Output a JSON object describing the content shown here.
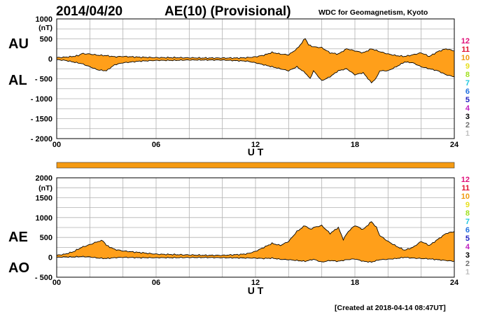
{
  "header": {
    "date": "2014/04/20",
    "title": "AE(10) (Provisional)",
    "source": "WDC for Geomagnetism, Kyoto"
  },
  "footer": {
    "created": "[Created at 2018-04-14 08:47UT]"
  },
  "colors": {
    "fill": "#ff9f1a",
    "line": "#000000",
    "grid": "#b0b0b0",
    "bar": "#f59a12"
  },
  "legend": {
    "entries": [
      {
        "label": "12",
        "color": "#e0107a"
      },
      {
        "label": "11",
        "color": "#e01030"
      },
      {
        "label": "10",
        "color": "#f09a10"
      },
      {
        "label": "9",
        "color": "#e8e020"
      },
      {
        "label": "8",
        "color": "#a0e020"
      },
      {
        "label": "7",
        "color": "#20c8e0"
      },
      {
        "label": "6",
        "color": "#2070e0"
      },
      {
        "label": "5",
        "color": "#2020c0"
      },
      {
        "label": "4",
        "color": "#c020c0"
      },
      {
        "label": "3",
        "color": "#000000"
      },
      {
        "label": "2",
        "color": "#707070"
      },
      {
        "label": "1",
        "color": "#c0c0c0"
      }
    ]
  },
  "chart_data": [
    {
      "type": "area",
      "title": "AU / AL",
      "upper_label": "AU",
      "lower_label": "AL",
      "ylabel": "(nT)",
      "xlabel": "U T",
      "xlim": [
        0,
        24
      ],
      "ylim": [
        -2000,
        1000
      ],
      "xticks": [
        0,
        6,
        12,
        18,
        24
      ],
      "xtick_labels": [
        "00",
        "06",
        "12",
        "18",
        "24"
      ],
      "yticks": [
        1000,
        500,
        0,
        -500,
        -1000,
        -1500,
        -2000
      ],
      "ytick_labels": [
        "1000",
        "500",
        "0",
        "- 500",
        "- 1000",
        "- 1500",
        "- 2000"
      ],
      "grid": true,
      "series": [
        {
          "name": "AU",
          "x": [
            0,
            0.5,
            1,
            1.3,
            1.5,
            2,
            2.5,
            3,
            3.5,
            4,
            5,
            6,
            7,
            8,
            9,
            10,
            11,
            11.5,
            12,
            12.5,
            13,
            13.5,
            14,
            14.5,
            14.8,
            15,
            15.2,
            15.5,
            16,
            16.5,
            17,
            17.5,
            18,
            18.5,
            19,
            19.5,
            20,
            20.5,
            21,
            21.5,
            22,
            22.5,
            23,
            23.5,
            24
          ],
          "values": [
            30,
            40,
            60,
            80,
            130,
            120,
            90,
            80,
            50,
            60,
            40,
            30,
            30,
            25,
            20,
            20,
            20,
            30,
            50,
            90,
            160,
            120,
            100,
            250,
            400,
            520,
            350,
            300,
            280,
            150,
            120,
            250,
            200,
            150,
            250,
            180,
            120,
            80,
            60,
            100,
            150,
            60,
            180,
            250,
            200
          ]
        },
        {
          "name": "AL",
          "x": [
            0,
            0.5,
            1,
            1.5,
            2,
            2.5,
            3,
            3.5,
            4,
            5,
            6,
            7,
            8,
            9,
            10,
            11,
            11.5,
            12,
            12.5,
            13,
            13.5,
            14,
            14.5,
            15,
            15.3,
            15.5,
            16,
            16.5,
            17,
            17.5,
            18,
            18.5,
            19,
            19.3,
            19.5,
            20,
            20.5,
            21,
            21.5,
            22,
            22.5,
            23,
            23.5,
            24
          ],
          "values": [
            -20,
            -40,
            -80,
            -120,
            -200,
            -280,
            -300,
            -150,
            -100,
            -60,
            -40,
            -40,
            -30,
            -30,
            -30,
            -50,
            -60,
            -100,
            -150,
            -200,
            -250,
            -300,
            -200,
            -350,
            -500,
            -300,
            -550,
            -450,
            -300,
            -250,
            -400,
            -350,
            -600,
            -480,
            -300,
            -300,
            -200,
            -80,
            -100,
            -200,
            -250,
            -300,
            -400,
            -450
          ]
        }
      ]
    },
    {
      "type": "area",
      "title": "AE / AO",
      "upper_label": "AE",
      "lower_label": "AO",
      "ylabel": "(nT)",
      "xlabel": "U T",
      "xlim": [
        0,
        24
      ],
      "ylim": [
        -500,
        2000
      ],
      "xticks": [
        0,
        6,
        12,
        18,
        24
      ],
      "xtick_labels": [
        "00",
        "06",
        "12",
        "18",
        "24"
      ],
      "yticks": [
        2000,
        1500,
        1000,
        500,
        0,
        -500
      ],
      "ytick_labels": [
        "2000",
        "1500",
        "1000",
        "500",
        "0",
        "- 500"
      ],
      "grid": true,
      "series": [
        {
          "name": "AE",
          "x": [
            0,
            0.5,
            1,
            1.5,
            2,
            2.5,
            2.8,
            3,
            3.5,
            4,
            5,
            6,
            7,
            8,
            9,
            10,
            11,
            11.5,
            12,
            12.5,
            13,
            13.5,
            14,
            14.5,
            15,
            15.3,
            15.5,
            16,
            16.5,
            17,
            17.3,
            17.6,
            18,
            18.5,
            19,
            19.3,
            19.5,
            20,
            20.5,
            21,
            21.5,
            22,
            22.5,
            23,
            23.5,
            24
          ],
          "values": [
            50,
            80,
            140,
            250,
            320,
            400,
            420,
            300,
            200,
            160,
            120,
            80,
            70,
            60,
            50,
            50,
            70,
            90,
            150,
            250,
            350,
            300,
            400,
            650,
            800,
            700,
            750,
            800,
            600,
            750,
            450,
            650,
            800,
            700,
            900,
            750,
            550,
            400,
            280,
            180,
            250,
            400,
            300,
            450,
            600,
            650
          ]
        },
        {
          "name": "AO",
          "x": [
            0,
            0.5,
            1,
            1.5,
            2,
            2.5,
            3,
            3.5,
            4,
            5,
            6,
            7,
            8,
            9,
            10,
            11,
            12,
            12.5,
            13,
            13.5,
            14,
            14.5,
            15,
            15.5,
            16,
            16.5,
            17,
            17.5,
            18,
            18.5,
            19,
            19.5,
            20,
            20.5,
            21,
            21.5,
            22,
            22.5,
            23,
            23.5,
            24
          ],
          "values": [
            0,
            10,
            10,
            20,
            10,
            -20,
            -30,
            -10,
            0,
            -10,
            -10,
            -10,
            -5,
            -5,
            -10,
            -15,
            -20,
            -30,
            -20,
            -50,
            -60,
            -80,
            -100,
            -50,
            -120,
            -80,
            -100,
            -60,
            -40,
            -100,
            -120,
            -60,
            -50,
            -30,
            0,
            -20,
            -30,
            -40,
            -60,
            -80,
            -100
          ]
        }
      ]
    }
  ]
}
